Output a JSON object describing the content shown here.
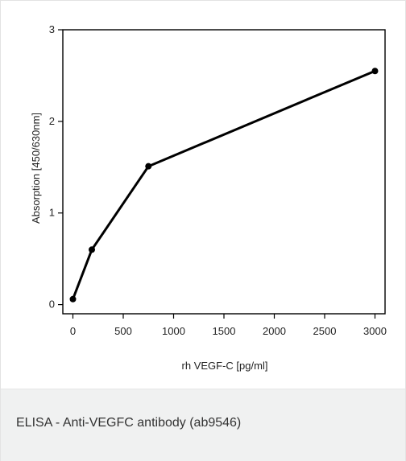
{
  "caption": "ELISA - Anti-VEGFC antibody (ab9546)",
  "chart_data": {
    "type": "line",
    "title": "",
    "xlabel": "rh VEGF-C [pg/ml]",
    "ylabel": "Absorption [450/630nm]",
    "xlim": [
      -100,
      3100
    ],
    "ylim": [
      -0.1,
      3
    ],
    "xticks": [
      0,
      500,
      1000,
      1500,
      2000,
      2500,
      3000
    ],
    "yticks": [
      0,
      1,
      2,
      3
    ],
    "grid": false,
    "series": [
      {
        "color": "#000000",
        "x": [
          0,
          188,
          750,
          3000
        ],
        "y": [
          0.06,
          0.6,
          1.51,
          2.55
        ]
      }
    ]
  }
}
